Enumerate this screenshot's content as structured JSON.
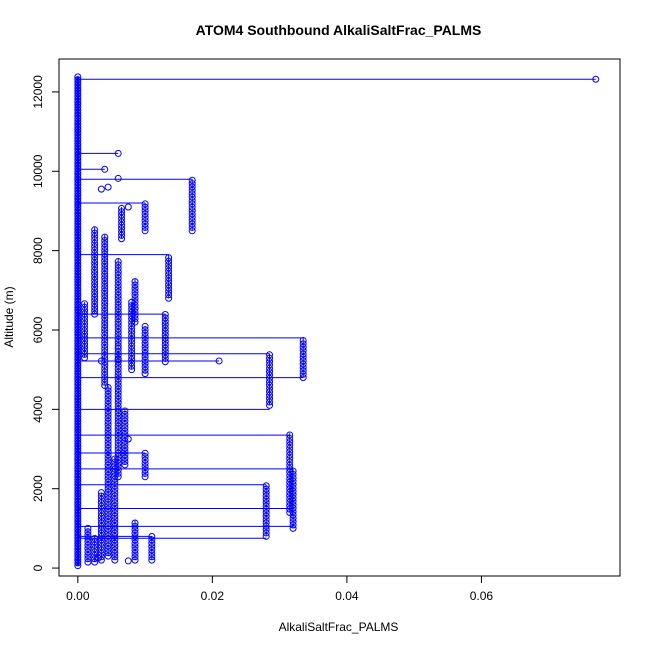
{
  "chart_data": {
    "type": "scatter",
    "title": "ATOM4 Southbound AlkaliSaltFrac_PALMS",
    "xlabel": "AlkaliSaltFrac_PALMS",
    "ylabel": "Altitude (m)",
    "xlim": [
      -0.0028,
      0.0806
    ],
    "ylim": [
      -200,
      12830
    ],
    "xticks": [
      0.0,
      0.02,
      0.04,
      0.06
    ],
    "xtick_labels": [
      "0.00",
      "0.02",
      "0.04",
      "0.06"
    ],
    "yticks": [
      0,
      2000,
      4000,
      6000,
      8000,
      10000,
      12000
    ],
    "ytick_labels": [
      "0",
      "2000",
      "4000",
      "6000",
      "8000",
      "10000",
      "12000"
    ],
    "color": "#0000ff",
    "grid": false,
    "legend": "none",
    "zero_column": {
      "x": 0.0,
      "y_from": 60,
      "y_to": 12380
    },
    "columns": [
      {
        "x": 0.0015,
        "y_from": 150,
        "y_to": 1000
      },
      {
        "x": 0.0025,
        "y_from": 150,
        "y_to": 800
      },
      {
        "x": 0.0035,
        "y_from": 200,
        "y_to": 1900
      },
      {
        "x": 0.0045,
        "y_from": 300,
        "y_to": 4600
      },
      {
        "x": 0.0055,
        "y_from": 200,
        "y_to": 2800
      },
      {
        "x": 0.006,
        "y_from": 2300,
        "y_to": 5600
      },
      {
        "x": 0.007,
        "y_from": 2600,
        "y_to": 4000
      },
      {
        "x": 0.0085,
        "y_from": 200,
        "y_to": 1200
      },
      {
        "x": 0.01,
        "y_from": 2300,
        "y_to": 2900
      },
      {
        "x": 0.011,
        "y_from": 200,
        "y_to": 800
      },
      {
        "x": 0.001,
        "y_from": 5300,
        "y_to": 6700
      },
      {
        "x": 0.0025,
        "y_from": 6400,
        "y_to": 8600
      },
      {
        "x": 0.004,
        "y_from": 4600,
        "y_to": 8400
      },
      {
        "x": 0.006,
        "y_from": 5600,
        "y_to": 7800
      },
      {
        "x": 0.0065,
        "y_from": 8300,
        "y_to": 9100
      },
      {
        "x": 0.008,
        "y_from": 5000,
        "y_to": 6700
      },
      {
        "x": 0.0085,
        "y_from": 6200,
        "y_to": 7300
      },
      {
        "x": 0.01,
        "y_from": 4900,
        "y_to": 6100
      },
      {
        "x": 0.01,
        "y_from": 8500,
        "y_to": 9200
      },
      {
        "x": 0.013,
        "y_from": 5200,
        "y_to": 6400
      },
      {
        "x": 0.0135,
        "y_from": 6800,
        "y_to": 7900
      },
      {
        "x": 0.017,
        "y_from": 8500,
        "y_to": 9800
      },
      {
        "x": 0.028,
        "y_from": 800,
        "y_to": 2100
      },
      {
        "x": 0.0285,
        "y_from": 4100,
        "y_to": 5400
      },
      {
        "x": 0.0315,
        "y_from": 1400,
        "y_to": 3400
      },
      {
        "x": 0.032,
        "y_from": 1000,
        "y_to": 2500
      },
      {
        "x": 0.0335,
        "y_from": 4800,
        "y_to": 5800
      }
    ],
    "points": [
      {
        "x": 0.077,
        "y": 12320
      },
      {
        "x": 0.006,
        "y": 10450
      },
      {
        "x": 0.004,
        "y": 10050
      },
      {
        "x": 0.006,
        "y": 9820
      },
      {
        "x": 0.0045,
        "y": 9600
      },
      {
        "x": 0.0035,
        "y": 9550
      },
      {
        "x": 0.0075,
        "y": 9100
      },
      {
        "x": 0.021,
        "y": 5220
      },
      {
        "x": 0.006,
        "y": 5250
      },
      {
        "x": 0.0035,
        "y": 5220
      },
      {
        "x": 0.0075,
        "y": 3250
      },
      {
        "x": 0.0075,
        "y": 180
      },
      {
        "x": 0.003,
        "y": 250
      }
    ],
    "connectors": [
      {
        "x": 0.077,
        "y": 12320
      },
      {
        "x": 0.006,
        "y": 10450
      },
      {
        "x": 0.004,
        "y": 10050
      },
      {
        "x": 0.017,
        "y": 9800
      },
      {
        "x": 0.01,
        "y": 9200
      },
      {
        "x": 0.021,
        "y": 5220
      },
      {
        "x": 0.0335,
        "y": 5800
      },
      {
        "x": 0.0285,
        "y": 5400
      },
      {
        "x": 0.0335,
        "y": 4800
      },
      {
        "x": 0.0285,
        "y": 4000
      },
      {
        "x": 0.0315,
        "y": 3350
      },
      {
        "x": 0.032,
        "y": 2500
      },
      {
        "x": 0.028,
        "y": 2100
      },
      {
        "x": 0.0315,
        "y": 1500
      },
      {
        "x": 0.032,
        "y": 1050
      },
      {
        "x": 0.028,
        "y": 750
      },
      {
        "x": 0.0135,
        "y": 7900
      },
      {
        "x": 0.013,
        "y": 6400
      },
      {
        "x": 0.01,
        "y": 2900
      },
      {
        "x": 0.011,
        "y": 800
      }
    ]
  }
}
